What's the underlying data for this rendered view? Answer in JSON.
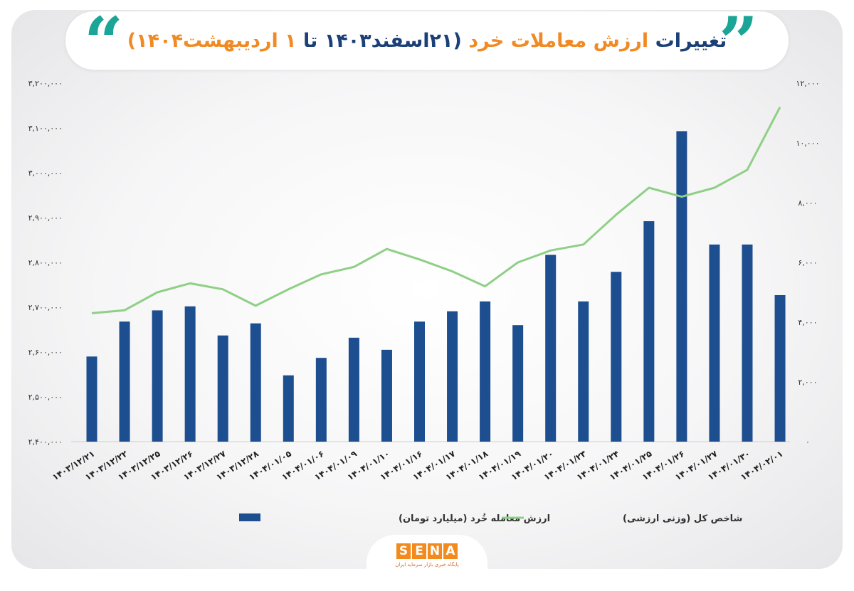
{
  "title": {
    "part1": "تغییرات",
    "part2": "ارزش معاملات خرد",
    "part3": "(۲۱اسفند۱۴۰۳ تا",
    "part4": "۱ اردیبهشت۱۴۰۴)"
  },
  "logo": {
    "letters": [
      "S",
      "E",
      "N",
      "A"
    ],
    "subtitle": "پایگاه خبری بازار سرمایه ایران"
  },
  "colors": {
    "bar": "#1d4e8f",
    "line": "#8fcf86",
    "title_blue": "#1b3f78",
    "title_orange": "#f08a24",
    "quote": "#1aa596"
  },
  "chart_data": {
    "type": "bar+line",
    "categories": [
      "۱۴۰۳/۱۲/۲۱",
      "۱۴۰۳/۱۲/۲۲",
      "۱۴۰۳/۱۲/۲۵",
      "۱۴۰۳/۱۲/۲۶",
      "۱۴۰۳/۱۲/۲۷",
      "۱۴۰۳/۱۲/۲۸",
      "۱۴۰۴/۰۱/۰۵",
      "۱۴۰۴/۰۱/۰۶",
      "۱۴۰۴/۰۱/۰۹",
      "۱۴۰۴/۰۱/۱۰",
      "۱۴۰۴/۰۱/۱۶",
      "۱۴۰۴/۰۱/۱۷",
      "۱۴۰۴/۰۱/۱۸",
      "۱۴۰۴/۰۱/۱۹",
      "۱۴۰۴/۰۱/۲۰",
      "۱۴۰۴/۰۱/۲۳",
      "۱۴۰۴/۰۱/۲۴",
      "۱۴۰۴/۰۱/۲۵",
      "۱۴۰۴/۰۱/۲۶",
      "۱۴۰۴/۰۱/۲۷",
      "۱۴۰۴/۰۱/۳۰",
      "۱۴۰۴/۰۲/۰۱"
    ],
    "series": [
      {
        "name": "ارزش معامله خُرد (میلیارد تومان)",
        "type": "bar",
        "axis": "left",
        "values": [
          2590000,
          2668000,
          2693000,
          2702000,
          2637000,
          2664000,
          2548000,
          2587000,
          2632000,
          2605000,
          2668000,
          2691000,
          2713000,
          2660000,
          2817000,
          2713000,
          2779000,
          2892000,
          3093000,
          2840000,
          2840000,
          2727000
        ]
      },
      {
        "name": "شاخص کل (وزنی ارزشی)",
        "type": "line",
        "axis": "right",
        "values": [
          4300,
          4400,
          5000,
          5300,
          5100,
          4550,
          5100,
          5600,
          5850,
          6450,
          6100,
          5700,
          5200,
          6000,
          6400,
          6600,
          7600,
          8500,
          8200,
          8500,
          9100,
          11200
        ]
      }
    ],
    "y_left": {
      "ylim": [
        2400000,
        3200000
      ],
      "ticks": [
        "۲,۴۰۰,۰۰۰",
        "۲,۵۰۰,۰۰۰",
        "۲,۶۰۰,۰۰۰",
        "۲,۷۰۰,۰۰۰",
        "۲,۸۰۰,۰۰۰",
        "۲,۹۰۰,۰۰۰",
        "۳,۰۰۰,۰۰۰",
        "۳,۱۰۰,۰۰۰",
        "۳,۲۰۰,۰۰۰"
      ]
    },
    "y_right": {
      "ylim": [
        0,
        12000
      ],
      "ticks": [
        "۰",
        "۲,۰۰۰",
        "۴,۰۰۰",
        "۶,۰۰۰",
        "۸,۰۰۰",
        "۱۰,۰۰۰",
        "۱۲,۰۰۰"
      ]
    },
    "grid": false,
    "legend": "bottom"
  }
}
